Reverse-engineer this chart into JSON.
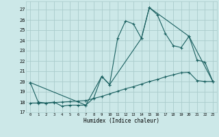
{
  "title": "",
  "xlabel": "Humidex (Indice chaleur)",
  "bg_color": "#cce8e8",
  "grid_color": "#aacccc",
  "line_color": "#1a6060",
  "xlim": [
    -0.5,
    23.5
  ],
  "ylim": [
    17.0,
    27.8
  ],
  "yticks": [
    17,
    18,
    19,
    20,
    21,
    22,
    23,
    24,
    25,
    26,
    27
  ],
  "xticks": [
    0,
    1,
    2,
    3,
    4,
    5,
    6,
    7,
    8,
    9,
    10,
    11,
    12,
    13,
    14,
    15,
    16,
    17,
    18,
    19,
    20,
    21,
    22,
    23
  ],
  "line1_x": [
    0,
    1,
    2,
    3,
    4,
    5,
    6,
    7,
    8,
    9,
    10,
    11,
    12,
    13,
    14,
    15,
    16,
    17,
    18,
    19,
    20,
    21,
    22,
    23
  ],
  "line1_y": [
    19.9,
    18.0,
    17.9,
    18.0,
    17.6,
    17.7,
    17.7,
    17.7,
    18.4,
    20.5,
    19.7,
    24.2,
    25.9,
    25.6,
    24.2,
    27.2,
    26.5,
    24.7,
    23.5,
    23.3,
    24.4,
    22.1,
    21.9,
    20.0
  ],
  "line2_x": [
    0,
    7,
    9,
    10,
    14,
    15,
    20,
    23
  ],
  "line2_y": [
    19.9,
    17.7,
    20.5,
    19.7,
    24.2,
    27.2,
    24.4,
    20.0
  ],
  "line3_x": [
    0,
    1,
    2,
    3,
    4,
    5,
    6,
    7,
    8,
    9,
    10,
    11,
    12,
    13,
    14,
    15,
    16,
    17,
    18,
    19,
    20,
    21,
    22,
    23
  ],
  "line3_y": [
    17.9,
    17.9,
    17.9,
    17.95,
    18.0,
    18.05,
    18.1,
    18.15,
    18.35,
    18.55,
    18.8,
    19.05,
    19.3,
    19.5,
    19.75,
    20.0,
    20.2,
    20.45,
    20.65,
    20.85,
    20.9,
    20.1,
    20.0,
    20.0
  ]
}
